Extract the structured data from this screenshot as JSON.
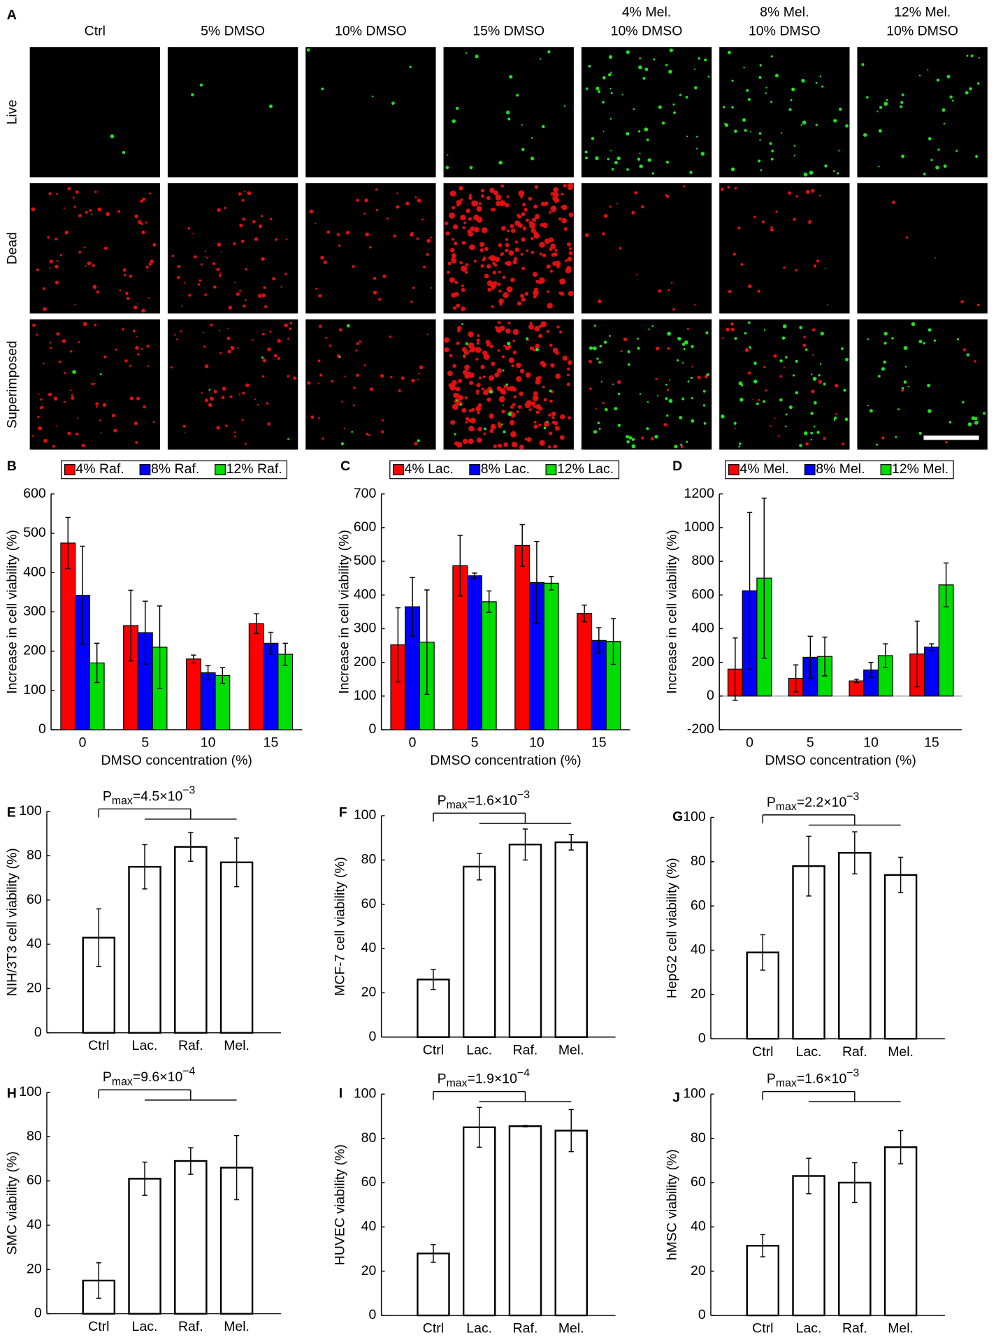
{
  "panel_a": {
    "label": "A",
    "columns": [
      [
        "Ctrl"
      ],
      [
        "5% DMSO"
      ],
      [
        "10% DMSO"
      ],
      [
        "15% DMSO"
      ],
      [
        "4% Mel.",
        "10% DMSO"
      ],
      [
        "8% Mel.",
        "10% DMSO"
      ],
      [
        "12% Mel.",
        "10% DMSO"
      ]
    ],
    "rows": [
      "Live",
      "Dead",
      "Superimposed"
    ]
  },
  "chart_data": [
    {
      "type": "grouped-bar",
      "panel": "B",
      "ylabel": "Increase in cell viability (%)",
      "xlabel": "DMSO concentration (%)",
      "categories": [
        "0",
        "5",
        "10",
        "15"
      ],
      "ylim": [
        0,
        600
      ],
      "yticks": [
        0,
        100,
        200,
        300,
        400,
        500,
        600
      ],
      "series": [
        {
          "name": "4% Raf.",
          "color": "#ff0000",
          "values": [
            475,
            265,
            180,
            270
          ],
          "errors": [
            65,
            90,
            10,
            25
          ]
        },
        {
          "name": "8% Raf.",
          "color": "#0000ff",
          "values": [
            342,
            247,
            145,
            220
          ],
          "errors": [
            125,
            80,
            18,
            28
          ]
        },
        {
          "name": "12% Raf.",
          "color": "#00dd00",
          "values": [
            170,
            210,
            138,
            192
          ],
          "errors": [
            50,
            105,
            20,
            28
          ]
        }
      ]
    },
    {
      "type": "grouped-bar",
      "panel": "C",
      "ylabel": "Increase in cell viability (%)",
      "xlabel": "DMSO concentration (%)",
      "categories": [
        "0",
        "5",
        "10",
        "15"
      ],
      "ylim": [
        0,
        700
      ],
      "yticks": [
        0,
        100,
        200,
        300,
        400,
        500,
        600,
        700
      ],
      "series": [
        {
          "name": "4% Lac.",
          "color": "#ff0000",
          "values": [
            252,
            487,
            547,
            345
          ],
          "errors": [
            110,
            90,
            62,
            25
          ]
        },
        {
          "name": "8% Lac.",
          "color": "#0000ff",
          "values": [
            365,
            457,
            437,
            265
          ],
          "errors": [
            87,
            8,
            122,
            38
          ]
        },
        {
          "name": "12% Lac.",
          "color": "#00dd00",
          "values": [
            260,
            380,
            435,
            262
          ],
          "errors": [
            155,
            32,
            20,
            68
          ]
        }
      ]
    },
    {
      "type": "grouped-bar",
      "panel": "D",
      "ylabel": "Increase in cell viability (%)",
      "xlabel": "DMSO concentration (%)",
      "categories": [
        "0",
        "5",
        "10",
        "15"
      ],
      "ylim": [
        -200,
        1200
      ],
      "yticks": [
        -200,
        0,
        200,
        400,
        600,
        800,
        1000,
        1200
      ],
      "series": [
        {
          "name": "4% Mel.",
          "color": "#ff0000",
          "values": [
            160,
            105,
            90,
            250
          ],
          "errors": [
            185,
            80,
            10,
            195
          ]
        },
        {
          "name": "8% Mel.",
          "color": "#0000ff",
          "values": [
            625,
            230,
            155,
            290
          ],
          "errors": [
            465,
            125,
            45,
            20
          ]
        },
        {
          "name": "12% Mel.",
          "color": "#00dd00",
          "values": [
            700,
            235,
            240,
            660
          ],
          "errors": [
            475,
            115,
            70,
            130
          ]
        }
      ]
    },
    {
      "type": "bar",
      "panel": "E",
      "ylabel": "NIH/3T3 cell viability (%)",
      "categories": [
        "Ctrl",
        "Lac.",
        "Raf.",
        "Mel."
      ],
      "values": [
        43,
        75,
        84,
        77
      ],
      "errors": [
        13,
        10,
        6.5,
        11
      ],
      "color": "#ffffff",
      "ylim": [
        0,
        100
      ],
      "yticks": [
        0,
        20,
        40,
        60,
        80,
        100
      ],
      "annotation": {
        "symbol": "P",
        "subscript": "max",
        "mantissa": "=4.5×10",
        "exponent": "−3"
      }
    },
    {
      "type": "bar",
      "panel": "F",
      "ylabel": "MCF-7 cell viability (%)",
      "categories": [
        "Ctrl",
        "Lac.",
        "Raf.",
        "Mel."
      ],
      "values": [
        26,
        77,
        87,
        88
      ],
      "errors": [
        4.5,
        6,
        7,
        3.5
      ],
      "color": "#ffffff",
      "ylim": [
        0,
        100
      ],
      "yticks": [
        0,
        20,
        40,
        60,
        80,
        100
      ],
      "annotation": {
        "symbol": "P",
        "subscript": "max",
        "mantissa": "=1.6×10",
        "exponent": "−3"
      }
    },
    {
      "type": "bar",
      "panel": "G",
      "ylabel": "HepG2 cell viability (%)",
      "categories": [
        "Ctrl",
        "Lac.",
        "Raf.",
        "Mel."
      ],
      "values": [
        39,
        78,
        84,
        74
      ],
      "errors": [
        8,
        13.5,
        9.5,
        8
      ],
      "color": "#ffffff",
      "ylim": [
        0,
        100
      ],
      "yticks": [
        0,
        20,
        40,
        60,
        80,
        100
      ],
      "annotation": {
        "symbol": "P",
        "subscript": "max",
        "mantissa": "=2.2×10",
        "exponent": "−3"
      }
    },
    {
      "type": "bar",
      "panel": "H",
      "ylabel": "SMC viability (%)",
      "categories": [
        "Ctrl",
        "Lac.",
        "Raf.",
        "Mel."
      ],
      "values": [
        15,
        61,
        69,
        66
      ],
      "errors": [
        8,
        7.5,
        6,
        14.5
      ],
      "color": "#ffffff",
      "ylim": [
        0,
        100
      ],
      "yticks": [
        0,
        20,
        40,
        60,
        80,
        100
      ],
      "annotation": {
        "symbol": "P",
        "subscript": "max",
        "mantissa": "=9.6×10",
        "exponent": "−4"
      }
    },
    {
      "type": "bar",
      "panel": "I",
      "ylabel": "HUVEC viability (%)",
      "categories": [
        "Ctrl",
        "Lac.",
        "Raf.",
        "Mel."
      ],
      "values": [
        28,
        85,
        85.5,
        83.5
      ],
      "errors": [
        4,
        9,
        0.3,
        9.5
      ],
      "color": "#ffffff",
      "ylim": [
        0,
        100
      ],
      "yticks": [
        0,
        20,
        40,
        60,
        80,
        100
      ],
      "annotation": {
        "symbol": "P",
        "subscript": "max",
        "mantissa": "=1.9×10",
        "exponent": "−4"
      }
    },
    {
      "type": "bar",
      "panel": "J",
      "ylabel": "hMSC viability (%)",
      "categories": [
        "Ctrl",
        "Lac.",
        "Raf.",
        "Mel."
      ],
      "values": [
        31.5,
        63,
        60,
        76
      ],
      "errors": [
        5,
        8,
        9,
        7.5
      ],
      "color": "#ffffff",
      "ylim": [
        0,
        100
      ],
      "yticks": [
        0,
        20,
        40,
        60,
        80,
        100
      ],
      "annotation": {
        "symbol": "P",
        "subscript": "max",
        "mantissa": "=1.6×10",
        "exponent": "−3"
      }
    }
  ]
}
